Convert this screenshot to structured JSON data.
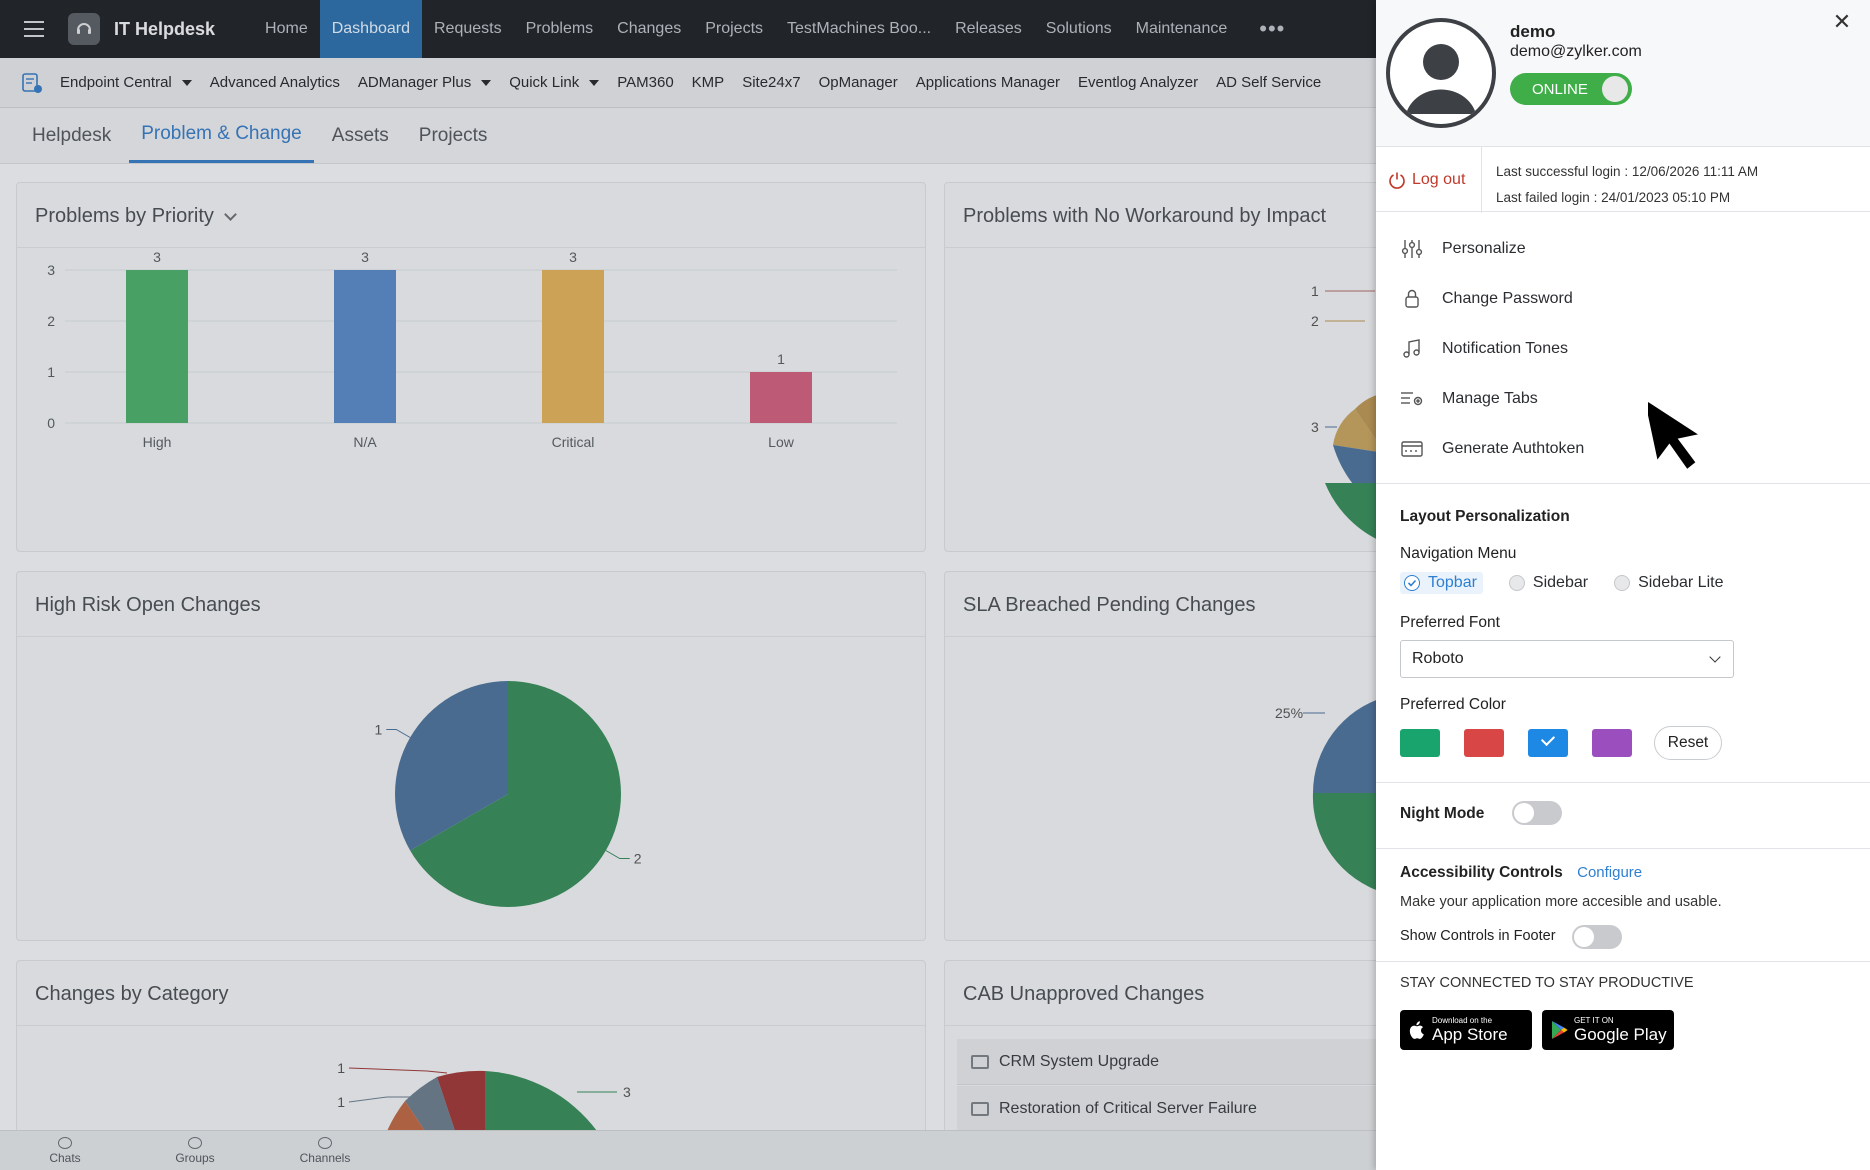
{
  "topbar": {
    "app_title": "IT Helpdesk",
    "nav": [
      "Home",
      "Dashboard",
      "Requests",
      "Problems",
      "Changes",
      "Projects",
      "TestMachines Boo...",
      "Releases",
      "Solutions",
      "Maintenance"
    ],
    "active_nav": "Dashboard",
    "more": "•••"
  },
  "quick_links": [
    {
      "label": "Endpoint Central",
      "dropdown": true
    },
    {
      "label": "Advanced Analytics",
      "dropdown": false
    },
    {
      "label": "ADManager Plus",
      "dropdown": true
    },
    {
      "label": "Quick Link",
      "dropdown": true
    },
    {
      "label": "PAM360",
      "dropdown": false
    },
    {
      "label": "KMP",
      "dropdown": false
    },
    {
      "label": "Site24x7",
      "dropdown": false
    },
    {
      "label": "OpManager",
      "dropdown": false
    },
    {
      "label": "Applications Manager",
      "dropdown": false
    },
    {
      "label": "Eventlog Analyzer",
      "dropdown": false
    },
    {
      "label": "AD Self Service",
      "dropdown": false
    }
  ],
  "subtabs": [
    "Helpdesk",
    "Problem & Change",
    "Assets",
    "Projects"
  ],
  "active_subtab": "Problem & Change",
  "widgets": {
    "problems_by_priority": "Problems by Priority",
    "no_workaround": "Problems with No Workaround by Impact",
    "high_risk": "High Risk Open Changes",
    "sla_breached": "SLA Breached Pending Changes",
    "changes_by_category": "Changes by Category",
    "cab_unapproved": "CAB Unapproved Changes",
    "cab_rows": [
      "CRM System Upgrade",
      "Restoration of Critical Server Failure"
    ]
  },
  "chart_data": [
    {
      "type": "bar",
      "title": "Problems by Priority",
      "categories": [
        "High",
        "N/A",
        "Critical",
        "Low"
      ],
      "values": [
        3,
        3,
        3,
        1
      ],
      "colors": [
        "#4daa6c",
        "#5a87c2",
        "#d9ad5c",
        "#c9607d"
      ],
      "y_ticks": [
        0,
        1,
        2,
        3
      ],
      "ylim": [
        0,
        3
      ]
    },
    {
      "type": "pie",
      "title": "High Risk Open Changes",
      "values": [
        2,
        1
      ],
      "labels": [
        "2",
        "1"
      ],
      "colors": [
        "#3a8a5c",
        "#4f7299"
      ]
    },
    {
      "type": "pie",
      "title": "Problems with No Workaround by Impact",
      "labels": [
        "1",
        "2",
        "3"
      ]
    },
    {
      "type": "pie",
      "title": "SLA Breached Pending Changes",
      "labels": [
        "25%"
      ]
    },
    {
      "type": "pie",
      "title": "Changes by Category",
      "labels": [
        "1",
        "1",
        "3"
      ]
    }
  ],
  "bottombar": [
    "Chats",
    "Groups",
    "Channels"
  ],
  "panel": {
    "user_name": "demo",
    "user_email": "demo@zylker.com",
    "status": "ONLINE",
    "logout": "Log out",
    "last_success": "Last successful login : 12/06/2026 11:11 AM",
    "last_failed": "Last failed login : 24/01/2023 05:10 PM",
    "menu": [
      {
        "label": "Personalize",
        "icon": "sliders-icon"
      },
      {
        "label": "Change Password",
        "icon": "lock-icon"
      },
      {
        "label": "Notification Tones",
        "icon": "music-note-icon"
      },
      {
        "label": "Manage Tabs",
        "icon": "manage-tabs-icon"
      },
      {
        "label": "Generate Authtoken",
        "icon": "token-icon"
      }
    ],
    "layout_title": "Layout Personalization",
    "nav_menu_label": "Navigation Menu",
    "nav_options": [
      "Topbar",
      "Sidebar",
      "Sidebar Lite"
    ],
    "nav_selected": "Topbar",
    "font_label": "Preferred Font",
    "font_value": "Roboto",
    "color_label": "Preferred Color",
    "colors": [
      "#1aa46d",
      "#d94646",
      "#1e88e5",
      "#9b4fbf"
    ],
    "color_selected": "#1e88e5",
    "reset": "Reset",
    "night_mode": "Night Mode",
    "night_mode_on": false,
    "access_title": "Accessibility Controls",
    "configure": "Configure",
    "access_desc": "Make your application more accesible and usable.",
    "show_controls": "Show Controls in Footer",
    "show_controls_on": false,
    "stay_connected": "STAY CONNECTED TO STAY PRODUCTIVE",
    "app_store_small": "Download on the",
    "app_store_big": "App Store",
    "play_small": "GET IT ON",
    "play_big": "Google Play"
  }
}
